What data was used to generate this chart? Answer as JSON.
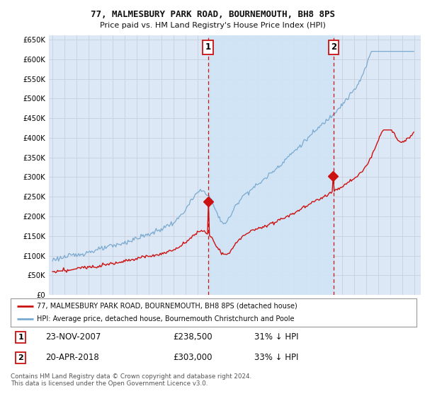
{
  "title1": "77, MALMESBURY PARK ROAD, BOURNEMOUTH, BH8 8PS",
  "title2": "Price paid vs. HM Land Registry's House Price Index (HPI)",
  "background_color": "#ffffff",
  "plot_bg_color": "#dce8f5",
  "grid_color": "#c8d0dc",
  "hpi_color": "#7aaad0",
  "price_color": "#cc1111",
  "shade_color": "#d0e4f5",
  "legend_price": "77, MALMESBURY PARK ROAD, BOURNEMOUTH, BH8 8PS (detached house)",
  "legend_hpi": "HPI: Average price, detached house, Bournemouth Christchurch and Poole",
  "footer": "Contains HM Land Registry data © Crown copyright and database right 2024.\nThis data is licensed under the Open Government Licence v3.0.",
  "ylim": [
    0,
    660000
  ],
  "xlim_start": 1994.7,
  "xlim_end": 2025.5,
  "sale1_x": 2007.89,
  "sale1_y": 238500,
  "sale2_x": 2018.29,
  "sale2_y": 303000
}
